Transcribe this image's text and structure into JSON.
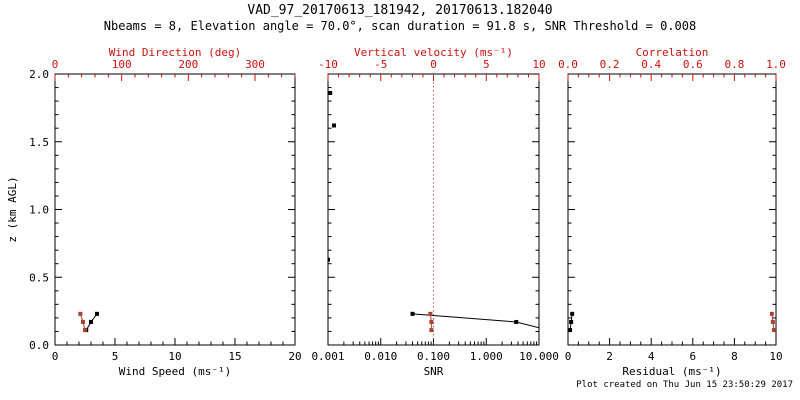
{
  "header": {
    "title": "VAD_97_20170613_181942, 20170613.182040",
    "subtitle": "Nbeams = 8, Elevation angle = 70.0°, scan duration = 91.8 s, SNR Threshold = 0.008"
  },
  "footer": {
    "created": "Plot created on Thu Jun 15 23:50:29 2017"
  },
  "colors": {
    "axis_red": "#cc1111",
    "data_red": "#a84334",
    "black": "#000000",
    "background": "#ffffff"
  },
  "chart_data": {
    "type": "scatter",
    "title": "VAD_97_20170613_181942, 20170613.182040",
    "ylabel": "z (km AGL)",
    "ylim": [
      0.0,
      2.0
    ],
    "y_axis": {
      "tick_values": [
        0.0,
        0.5,
        1.0,
        1.5,
        2.0
      ],
      "tick_labels": [
        "0.0",
        "0.5",
        "1.0",
        "1.5",
        "2.0"
      ],
      "minor_step": 0.1
    },
    "panels": [
      {
        "id": "wind",
        "bottom_axis": {
          "label": "Wind Speed (ms⁻¹)",
          "scale": "linear",
          "range": [
            0,
            20
          ],
          "tick_values": [
            0,
            5,
            10,
            15,
            20
          ],
          "tick_labels": [
            "0",
            "5",
            "10",
            "15",
            "20"
          ],
          "minor_step": 1
        },
        "top_axis": {
          "label": "Wind Direction (deg)",
          "scale": "linear",
          "range": [
            0,
            360
          ],
          "tick_values": [
            0,
            100,
            200,
            300
          ],
          "tick_labels": [
            "0",
            "100",
            "200",
            "300"
          ],
          "minor_step": 20
        },
        "series": [
          {
            "name": "wind_speed",
            "axis": "bottom",
            "color": "black",
            "line": true,
            "points": [
              [
                2.6,
                0.11
              ],
              [
                3.0,
                0.17
              ],
              [
                3.5,
                0.23
              ]
            ]
          },
          {
            "name": "wind_direction",
            "axis": "top",
            "color": "red",
            "line": true,
            "points": [
              [
                45,
                0.11
              ],
              [
                42,
                0.17
              ],
              [
                38,
                0.23
              ]
            ]
          }
        ]
      },
      {
        "id": "snr",
        "bottom_axis": {
          "label": "SNR",
          "scale": "log",
          "range": [
            0.001,
            10
          ],
          "tick_values": [
            0.001,
            0.01,
            0.1,
            1,
            10
          ],
          "tick_labels": [
            "0.001",
            "0.010",
            "0.100",
            "1.000",
            "10.000"
          ],
          "minor_step": "log"
        },
        "top_axis": {
          "label": "Vertical velocity (ms⁻¹)",
          "scale": "linear",
          "range": [
            -10,
            10
          ],
          "tick_values": [
            -10,
            -5,
            0,
            5,
            10
          ],
          "tick_labels": [
            "-10",
            "-5",
            "0",
            "5",
            "10"
          ],
          "minor_step": 1
        },
        "ref_line": {
          "axis": "top",
          "value": 0,
          "style": "dotted",
          "color": "red"
        },
        "series": [
          {
            "name": "snr_profile",
            "axis": "bottom",
            "color": "black",
            "line": true,
            "points": [
              [
                0.04,
                0.23
              ],
              [
                3.7,
                0.17
              ],
              [
                15,
                0.11
              ]
            ]
          },
          {
            "name": "snr_high_gates",
            "axis": "bottom",
            "color": "black",
            "line": false,
            "points": [
              [
                0.0011,
                1.86
              ],
              [
                0.0013,
                1.62
              ],
              [
                0.001,
                0.63
              ]
            ]
          },
          {
            "name": "vertical_velocity",
            "axis": "top",
            "color": "red",
            "line": true,
            "points": [
              [
                -0.2,
                0.11
              ],
              [
                -0.2,
                0.17
              ],
              [
                -0.3,
                0.23
              ]
            ]
          }
        ]
      },
      {
        "id": "residual",
        "bottom_axis": {
          "label": "Residual (ms⁻¹)",
          "scale": "linear",
          "range": [
            0,
            10
          ],
          "tick_values": [
            0,
            2,
            4,
            6,
            8,
            10
          ],
          "tick_labels": [
            "0",
            "2",
            "4",
            "6",
            "8",
            "10"
          ],
          "minor_step": 0.5
        },
        "top_axis": {
          "label": "Correlation",
          "scale": "linear",
          "range": [
            0,
            1
          ],
          "tick_values": [
            0,
            0.2,
            0.4,
            0.6,
            0.8,
            1.0
          ],
          "tick_labels": [
            "0.0",
            "0.2",
            "0.4",
            "0.6",
            "0.8",
            "1.0"
          ],
          "minor_step": 0.05
        },
        "series": [
          {
            "name": "residual",
            "axis": "bottom",
            "color": "black",
            "line": true,
            "points": [
              [
                0.1,
                0.11
              ],
              [
                0.15,
                0.17
              ],
              [
                0.2,
                0.23
              ]
            ]
          },
          {
            "name": "correlation",
            "axis": "top",
            "color": "red",
            "line": true,
            "points": [
              [
                0.99,
                0.11
              ],
              [
                0.985,
                0.17
              ],
              [
                0.98,
                0.23
              ]
            ]
          }
        ]
      }
    ]
  }
}
